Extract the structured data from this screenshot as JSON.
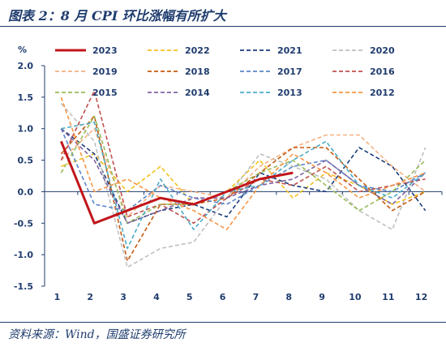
{
  "header": {
    "title": "图表 2：8 月 CPI 环比涨幅有所扩大"
  },
  "footer": {
    "source": "资料来源：Wind，国盛证券研究所"
  },
  "chart_data": {
    "type": "line",
    "unit": "%",
    "categories": [
      "1",
      "2",
      "3",
      "4",
      "5",
      "6",
      "7",
      "8",
      "9",
      "10",
      "11",
      "12"
    ],
    "ylim": [
      -1.5,
      2.0
    ],
    "yticks": [
      "2.0",
      "1.5",
      "1.0",
      "0.5",
      "0.0",
      "-0.5",
      "-1.0",
      "-1.5"
    ],
    "legend_position": "top",
    "series": [
      {
        "name": "2023",
        "color": "#c0161b",
        "dash": "solid",
        "values": [
          0.8,
          -0.5,
          -0.3,
          -0.1,
          -0.2,
          0.0,
          0.2,
          0.3,
          null,
          null,
          null,
          null
        ]
      },
      {
        "name": "2022",
        "color": "#f2c01e",
        "dash": "dashed",
        "values": [
          0.4,
          0.6,
          0.0,
          0.4,
          -0.2,
          0.0,
          0.5,
          -0.1,
          0.3,
          0.1,
          -0.2,
          0.0
        ]
      },
      {
        "name": "2021",
        "color": "#1b3d7a",
        "dash": "dashed",
        "values": [
          1.0,
          0.6,
          -0.5,
          -0.3,
          -0.2,
          -0.4,
          0.3,
          0.1,
          0.0,
          0.7,
          0.4,
          -0.3
        ]
      },
      {
        "name": "2020",
        "color": "#bfbfbf",
        "dash": "dashed",
        "values": [
          1.4,
          0.8,
          -1.2,
          -0.9,
          -0.8,
          -0.1,
          0.6,
          0.4,
          0.2,
          -0.3,
          -0.6,
          0.7
        ]
      },
      {
        "name": "2019",
        "color": "#f4b183",
        "dash": "dashed",
        "values": [
          0.5,
          1.0,
          -0.4,
          0.1,
          0.0,
          -0.1,
          0.4,
          0.7,
          0.9,
          0.9,
          0.4,
          0.0
        ]
      },
      {
        "name": "2018",
        "color": "#c55a11",
        "dash": "dashed",
        "values": [
          0.6,
          1.2,
          -1.1,
          -0.2,
          -0.2,
          -0.1,
          0.3,
          0.7,
          0.7,
          0.2,
          -0.3,
          0.0
        ]
      },
      {
        "name": "2017",
        "color": "#5b86c8",
        "dash": "dashed",
        "values": [
          1.0,
          -0.2,
          -0.3,
          0.1,
          -0.1,
          -0.2,
          0.1,
          0.4,
          0.5,
          0.1,
          0.0,
          0.3
        ]
      },
      {
        "name": "2016",
        "color": "#c0504d",
        "dash": "dashed",
        "values": [
          0.5,
          1.6,
          -0.4,
          -0.2,
          -0.5,
          -0.1,
          0.2,
          0.1,
          0.4,
          0.0,
          0.1,
          0.2
        ]
      },
      {
        "name": "2015",
        "color": "#9bbb59",
        "dash": "dashed",
        "values": [
          0.3,
          1.2,
          -0.5,
          -0.2,
          -0.2,
          0.0,
          0.3,
          0.5,
          0.1,
          -0.3,
          0.0,
          0.5
        ]
      },
      {
        "name": "2014",
        "color": "#8064a2",
        "dash": "dashed",
        "values": [
          1.0,
          0.5,
          -0.5,
          -0.3,
          -0.1,
          -0.1,
          0.1,
          0.2,
          0.5,
          0.1,
          -0.2,
          0.3
        ]
      },
      {
        "name": "2013",
        "color": "#4bacc6",
        "dash": "dashed",
        "values": [
          1.0,
          1.1,
          -0.9,
          0.2,
          -0.6,
          0.0,
          0.1,
          0.5,
          0.8,
          0.1,
          -0.1,
          0.3
        ]
      },
      {
        "name": "2012",
        "color": "#f79646",
        "dash": "dashed",
        "values": [
          1.5,
          0.0,
          0.2,
          -0.1,
          -0.3,
          -0.6,
          0.1,
          0.6,
          0.3,
          -0.1,
          0.1,
          0.3
        ]
      }
    ]
  }
}
